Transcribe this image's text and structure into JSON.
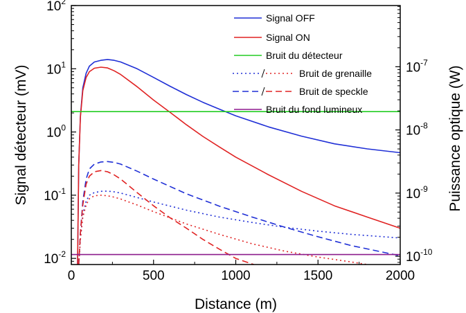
{
  "chart_data": {
    "type": "line",
    "xlabel": "Distance (m)",
    "ylabel": "Signal détecteur (mV)",
    "y2label": "Puissance optique (W)",
    "xlim": [
      0,
      2000
    ],
    "ylim": [
      0.008,
      100
    ],
    "y2lim": [
      7.4e-11,
      9.3e-07
    ],
    "yscale": "log",
    "y2scale": "log",
    "grid": false,
    "legend_position": "top-right",
    "xticks": [
      {
        "value": 0,
        "label": "0"
      },
      {
        "value": 500,
        "label": "500"
      },
      {
        "value": 1000,
        "label": "1000"
      },
      {
        "value": 1500,
        "label": "1500"
      },
      {
        "value": 2000,
        "label": "2000"
      }
    ],
    "yticks": [
      {
        "value": 0.01,
        "base": "10",
        "exp": "-2"
      },
      {
        "value": 0.1,
        "base": "10",
        "exp": "-1"
      },
      {
        "value": 1,
        "base": "10",
        "exp": "0"
      },
      {
        "value": 10,
        "base": "10",
        "exp": "1"
      },
      {
        "value": 100,
        "base": "10",
        "exp": "2"
      }
    ],
    "y2ticks": [
      {
        "value": 1e-10,
        "base": "10",
        "exp": "-10"
      },
      {
        "value": 1e-09,
        "base": "10",
        "exp": "-9"
      },
      {
        "value": 1e-08,
        "base": "10",
        "exp": "-8"
      },
      {
        "value": 1e-07,
        "base": "10",
        "exp": "-7"
      }
    ],
    "legend": [
      {
        "label": "Signal OFF",
        "color": "#1f2fd6",
        "dash": "solid",
        "color2": ""
      },
      {
        "label": "Signal ON",
        "color": "#e02222",
        "dash": "solid",
        "color2": ""
      },
      {
        "label": "Bruit du détecteur",
        "color": "#22cc22",
        "dash": "solid",
        "color2": ""
      },
      {
        "label": "Bruit de grenaille",
        "color": "#1f2fd6",
        "dash": "dotted",
        "color2": "#e02222"
      },
      {
        "label": "Bruit de speckle",
        "color": "#1f2fd6",
        "dash": "dashed",
        "color2": "#e02222"
      },
      {
        "label": "Bruit du fond lumineux",
        "color": "#8b1a8b",
        "dash": "solid",
        "color2": ""
      }
    ],
    "series": [
      {
        "name": "Signal OFF",
        "color": "#1f2fd6",
        "dash": "solid",
        "x": [
          38,
          45,
          55,
          70,
          90,
          110,
          140,
          180,
          220,
          260,
          300,
          400,
          500,
          600,
          700,
          800,
          900,
          1000,
          1200,
          1400,
          1600,
          1800,
          2000
        ],
        "y": [
          0.008,
          0.3,
          1.8,
          5,
          8.5,
          11,
          12.8,
          13.6,
          14,
          13.6,
          12.8,
          10,
          7.3,
          5.3,
          3.9,
          2.95,
          2.3,
          1.8,
          1.2,
          0.86,
          0.65,
          0.54,
          0.47
        ]
      },
      {
        "name": "Signal ON",
        "color": "#e02222",
        "dash": "solid",
        "x": [
          38,
          45,
          55,
          70,
          90,
          110,
          140,
          180,
          220,
          260,
          300,
          400,
          500,
          600,
          700,
          800,
          900,
          1000,
          1200,
          1400,
          1600,
          1800,
          2000
        ],
        "y": [
          0.008,
          0.3,
          1.7,
          4.5,
          7.3,
          9,
          10.2,
          10.6,
          10.3,
          9.3,
          8.1,
          5.2,
          3.2,
          2.05,
          1.3,
          0.85,
          0.58,
          0.4,
          0.21,
          0.115,
          0.068,
          0.045,
          0.03
        ]
      },
      {
        "name": "Bruit du détecteur",
        "color": "#22cc22",
        "dash": "solid",
        "x": [
          0,
          2000
        ],
        "y": [
          2.1,
          2.1
        ]
      },
      {
        "name": "Bruit de grenaille",
        "color": "#1f2fd6",
        "dash": "dotted",
        "x": [
          45,
          55,
          70,
          90,
          110,
          140,
          180,
          220,
          260,
          300,
          400,
          500,
          700,
          900,
          1100,
          1300,
          1500,
          1700,
          2000
        ],
        "y": [
          0.008,
          0.02,
          0.05,
          0.08,
          0.1,
          0.11,
          0.115,
          0.116,
          0.113,
          0.108,
          0.092,
          0.078,
          0.058,
          0.045,
          0.037,
          0.031,
          0.027,
          0.024,
          0.021
        ]
      },
      {
        "name": "Bruit de grenaille",
        "color": "#e02222",
        "dash": "dotted",
        "x": [
          45,
          55,
          70,
          90,
          110,
          140,
          180,
          220,
          260,
          300,
          400,
          500,
          700,
          900,
          1100,
          1300,
          1500,
          1700,
          1800
        ],
        "y": [
          0.008,
          0.02,
          0.045,
          0.07,
          0.088,
          0.098,
          0.1,
          0.098,
          0.093,
          0.087,
          0.07,
          0.055,
          0.035,
          0.024,
          0.017,
          0.013,
          0.0105,
          0.0088,
          0.008
        ]
      },
      {
        "name": "Bruit de speckle",
        "color": "#1f2fd6",
        "dash": "dashed",
        "x": [
          45,
          55,
          70,
          90,
          110,
          140,
          180,
          220,
          260,
          300,
          400,
          500,
          700,
          900,
          1100,
          1300,
          1500,
          1700,
          2000
        ],
        "y": [
          0.008,
          0.025,
          0.08,
          0.18,
          0.26,
          0.31,
          0.335,
          0.34,
          0.33,
          0.31,
          0.24,
          0.18,
          0.105,
          0.067,
          0.045,
          0.031,
          0.022,
          0.016,
          0.011
        ]
      },
      {
        "name": "Bruit de speckle",
        "color": "#e02222",
        "dash": "dashed",
        "x": [
          45,
          55,
          70,
          90,
          110,
          140,
          180,
          220,
          260,
          300,
          400,
          500,
          600,
          700,
          800,
          900,
          1000,
          1110
        ],
        "y": [
          0.008,
          0.025,
          0.07,
          0.15,
          0.2,
          0.235,
          0.245,
          0.235,
          0.21,
          0.18,
          0.11,
          0.068,
          0.044,
          0.03,
          0.02,
          0.014,
          0.01,
          0.008
        ]
      },
      {
        "name": "Bruit du fond lumineux",
        "color": "#8b1a8b",
        "dash": "solid",
        "x": [
          0,
          2000
        ],
        "y": [
          0.0115,
          0.0115
        ]
      }
    ]
  }
}
